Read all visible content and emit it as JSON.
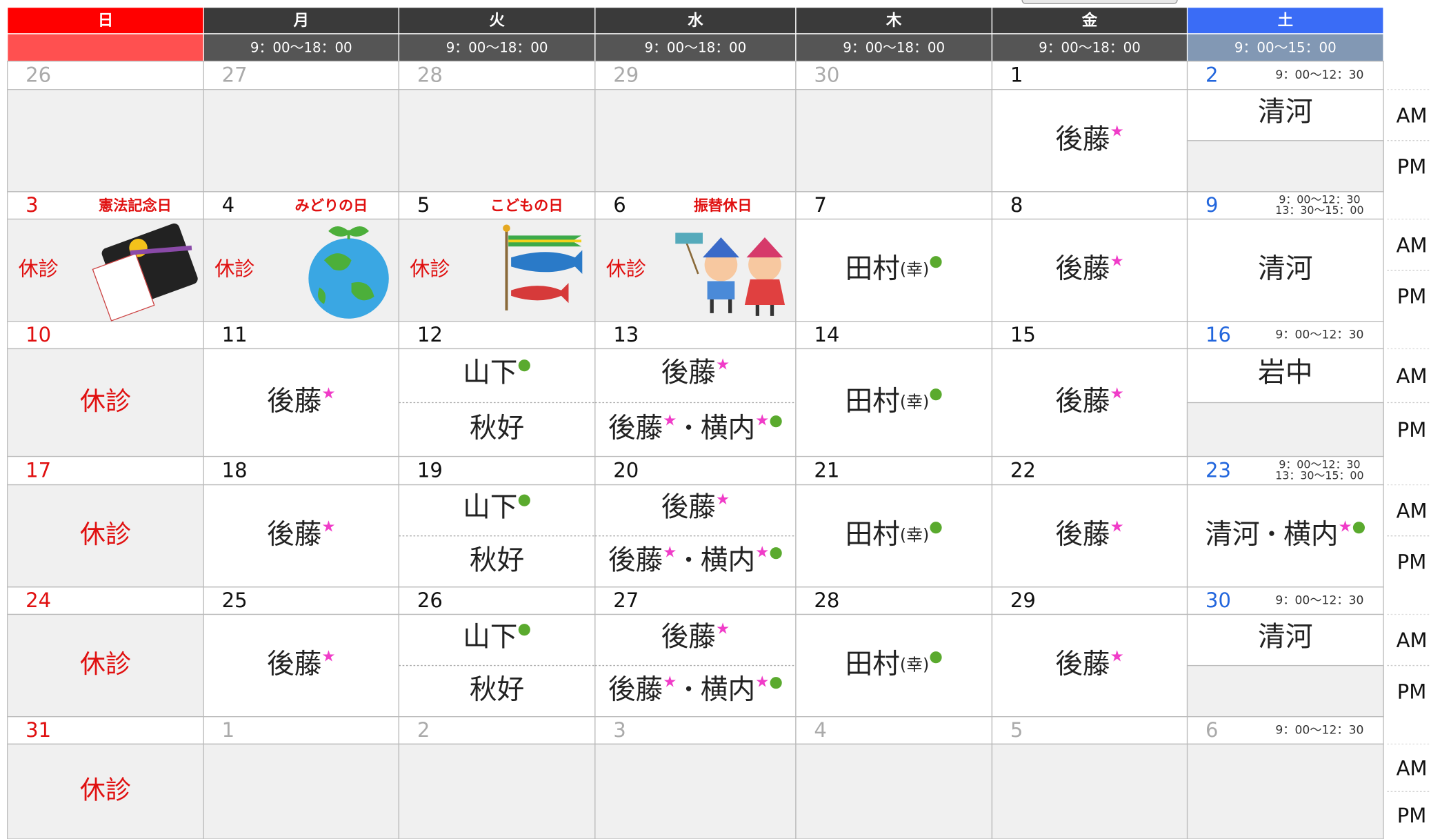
{
  "header": {
    "days": [
      "日",
      "月",
      "火",
      "水",
      "木",
      "金",
      "土"
    ],
    "hours": [
      "9：00～18：00",
      "9：00～18：00",
      "9：00～18：00",
      "9：00～18：00",
      "9：00～18：00",
      "9：00～15：00"
    ]
  },
  "ampm": [
    "AM",
    "PM"
  ],
  "colors": {
    "star": "#f03cc8",
    "dot": "#5aaa2e"
  },
  "weeks": [
    {
      "days": [
        {
          "date": "26",
          "muted": true
        },
        {
          "date": "27",
          "muted": true
        },
        {
          "date": "28",
          "muted": true
        },
        {
          "date": "29",
          "muted": true
        },
        {
          "date": "30",
          "muted": true
        },
        {
          "date": "1",
          "full": [
            {
              "text": "後藤",
              "style": "name"
            },
            {
              "text": "★",
              "style": "star"
            }
          ]
        },
        {
          "date": "2",
          "note": [
            "9：00～12：30"
          ],
          "am": [
            {
              "text": "清河",
              "style": "name"
            }
          ]
        }
      ]
    },
    {
      "days": [
        {
          "date": "3",
          "holiday": "憲法記念日",
          "closed": "休診"
        },
        {
          "date": "4",
          "holiday": "みどりの日",
          "closed": "休診"
        },
        {
          "date": "5",
          "holiday": "こどもの日",
          "closed": "休診"
        },
        {
          "date": "6",
          "holiday": "振替休日",
          "closed": "休診"
        },
        {
          "date": "7",
          "full": [
            {
              "text": "田村",
              "style": "name"
            },
            {
              "text": "(幸)",
              "style": "small"
            },
            {
              "text": "●",
              "style": "dot"
            }
          ]
        },
        {
          "date": "8",
          "full": [
            {
              "text": "後藤",
              "style": "name"
            },
            {
              "text": "★",
              "style": "star"
            }
          ]
        },
        {
          "date": "9",
          "note": [
            "9：00～12：30",
            "13：30～15：00"
          ],
          "full": [
            {
              "text": "清河",
              "style": "name"
            }
          ]
        }
      ]
    },
    {
      "days": [
        {
          "date": "10",
          "closed": "休診"
        },
        {
          "date": "11",
          "full": [
            {
              "text": "後藤",
              "style": "name"
            },
            {
              "text": "★",
              "style": "star"
            }
          ]
        },
        {
          "date": "12",
          "am": [
            {
              "text": "山下",
              "style": "name"
            },
            {
              "text": "●",
              "style": "dot"
            }
          ],
          "pm": [
            {
              "text": "秋好",
              "style": "name"
            }
          ]
        },
        {
          "date": "13",
          "am": [
            {
              "text": "後藤",
              "style": "name"
            },
            {
              "text": "★",
              "style": "star"
            }
          ],
          "pm": [
            {
              "text": "後藤",
              "style": "name"
            },
            {
              "text": "★",
              "style": "star"
            },
            {
              "text": "・",
              "style": "sep"
            },
            {
              "text": "横内",
              "style": "name"
            },
            {
              "text": "★",
              "style": "star"
            },
            {
              "text": "●",
              "style": "dot"
            }
          ]
        },
        {
          "date": "14",
          "full": [
            {
              "text": "田村",
              "style": "name"
            },
            {
              "text": "(幸)",
              "style": "small"
            },
            {
              "text": "●",
              "style": "dot"
            }
          ]
        },
        {
          "date": "15",
          "full": [
            {
              "text": "後藤",
              "style": "name"
            },
            {
              "text": "★",
              "style": "star"
            }
          ]
        },
        {
          "date": "16",
          "note": [
            "9：00～12：30"
          ],
          "am": [
            {
              "text": "岩中",
              "style": "name"
            }
          ]
        }
      ]
    },
    {
      "days": [
        {
          "date": "17",
          "closed": "休診"
        },
        {
          "date": "18",
          "full": [
            {
              "text": "後藤",
              "style": "name"
            },
            {
              "text": "★",
              "style": "star"
            }
          ]
        },
        {
          "date": "19",
          "am": [
            {
              "text": "山下",
              "style": "name"
            },
            {
              "text": "●",
              "style": "dot"
            }
          ],
          "pm": [
            {
              "text": "秋好",
              "style": "name"
            }
          ]
        },
        {
          "date": "20",
          "am": [
            {
              "text": "後藤",
              "style": "name"
            },
            {
              "text": "★",
              "style": "star"
            }
          ],
          "pm": [
            {
              "text": "後藤",
              "style": "name"
            },
            {
              "text": "★",
              "style": "star"
            },
            {
              "text": "・",
              "style": "sep"
            },
            {
              "text": "横内",
              "style": "name"
            },
            {
              "text": "★",
              "style": "star"
            },
            {
              "text": "●",
              "style": "dot"
            }
          ]
        },
        {
          "date": "21",
          "full": [
            {
              "text": "田村",
              "style": "name"
            },
            {
              "text": "(幸)",
              "style": "small"
            },
            {
              "text": "●",
              "style": "dot"
            }
          ]
        },
        {
          "date": "22",
          "full": [
            {
              "text": "後藤",
              "style": "name"
            },
            {
              "text": "★",
              "style": "star"
            }
          ]
        },
        {
          "date": "23",
          "note": [
            "9：00～12：30",
            "13：30～15：00"
          ],
          "full": [
            {
              "text": "清河",
              "style": "name"
            },
            {
              "text": "・",
              "style": "sep"
            },
            {
              "text": "横内",
              "style": "name"
            },
            {
              "text": "★",
              "style": "star"
            },
            {
              "text": "●",
              "style": "dot"
            }
          ]
        }
      ]
    },
    {
      "days": [
        {
          "date": "24",
          "closed": "休診"
        },
        {
          "date": "25",
          "full": [
            {
              "text": "後藤",
              "style": "name"
            },
            {
              "text": "★",
              "style": "star"
            }
          ]
        },
        {
          "date": "26",
          "am": [
            {
              "text": "山下",
              "style": "name"
            },
            {
              "text": "●",
              "style": "dot"
            }
          ],
          "pm": [
            {
              "text": "秋好",
              "style": "name"
            }
          ]
        },
        {
          "date": "27",
          "am": [
            {
              "text": "後藤",
              "style": "name"
            },
            {
              "text": "★",
              "style": "star"
            }
          ],
          "pm": [
            {
              "text": "後藤",
              "style": "name"
            },
            {
              "text": "★",
              "style": "star"
            },
            {
              "text": "・",
              "style": "sep"
            },
            {
              "text": "横内",
              "style": "name"
            },
            {
              "text": "★",
              "style": "star"
            },
            {
              "text": "●",
              "style": "dot"
            }
          ]
        },
        {
          "date": "28",
          "full": [
            {
              "text": "田村",
              "style": "name"
            },
            {
              "text": "(幸)",
              "style": "small"
            },
            {
              "text": "●",
              "style": "dot"
            }
          ]
        },
        {
          "date": "29",
          "full": [
            {
              "text": "後藤",
              "style": "name"
            },
            {
              "text": "★",
              "style": "star"
            }
          ]
        },
        {
          "date": "30",
          "note": [
            "9：00～12：30"
          ],
          "am": [
            {
              "text": "清河",
              "style": "name"
            }
          ]
        }
      ]
    },
    {
      "days": [
        {
          "date": "31",
          "closed": "休診"
        },
        {
          "date": "1",
          "muted": true
        },
        {
          "date": "2",
          "muted": true
        },
        {
          "date": "3",
          "muted": true
        },
        {
          "date": "4",
          "muted": true
        },
        {
          "date": "5",
          "muted": true
        },
        {
          "date": "6",
          "muted": true,
          "note": [
            "9：00～12：30"
          ]
        }
      ]
    }
  ]
}
